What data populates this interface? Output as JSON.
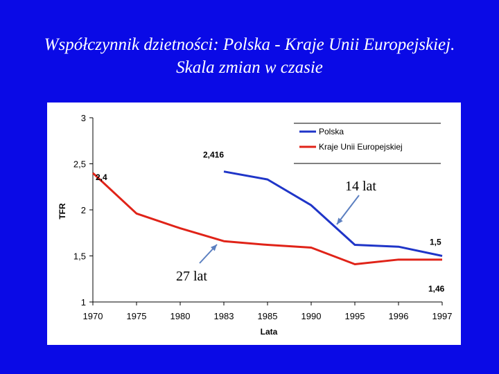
{
  "slide": {
    "title_line1": "Współczynnik dzietności: Polska - Kraje Unii Europejskiej.",
    "title_line2": "Skala zmian w czasie"
  },
  "colors": {
    "background": "#0a0ae6",
    "polska": "#1f35c8",
    "eu": "#e02318"
  },
  "chart_data": {
    "type": "line",
    "categories": [
      "1970",
      "1975",
      "1980",
      "1983",
      "1985",
      "1990",
      "1995",
      "1996",
      "1997"
    ],
    "series": [
      {
        "name": "Polska",
        "color": "#1f35c8",
        "values": [
          null,
          null,
          null,
          2.416,
          2.33,
          2.05,
          1.62,
          1.6,
          1.5
        ]
      },
      {
        "name": "Kraje Unii Europejskiej",
        "color": "#e02318",
        "values": [
          2.4,
          1.96,
          1.8,
          1.66,
          1.62,
          1.59,
          1.41,
          1.46,
          1.46
        ]
      }
    ],
    "ylabel": "TFR",
    "xlabel": "Lata",
    "ylim": [
      1,
      3
    ],
    "yticks": [
      "1",
      "1,5",
      "2",
      "2,5",
      "3"
    ],
    "grid": false,
    "legend_position": "top-right",
    "data_labels": [
      {
        "text": "2,4",
        "series": 1,
        "index": 0
      },
      {
        "text": "2,416",
        "series": 0,
        "index": 3
      },
      {
        "text": "1,5",
        "series": 0,
        "index": 8
      },
      {
        "text": "1,46",
        "series": 1,
        "index": 8
      }
    ],
    "annotations": [
      {
        "text": "14 lat",
        "series": 0,
        "index": 6
      },
      {
        "text": "27 lat",
        "series": 1,
        "index": 3
      }
    ]
  }
}
